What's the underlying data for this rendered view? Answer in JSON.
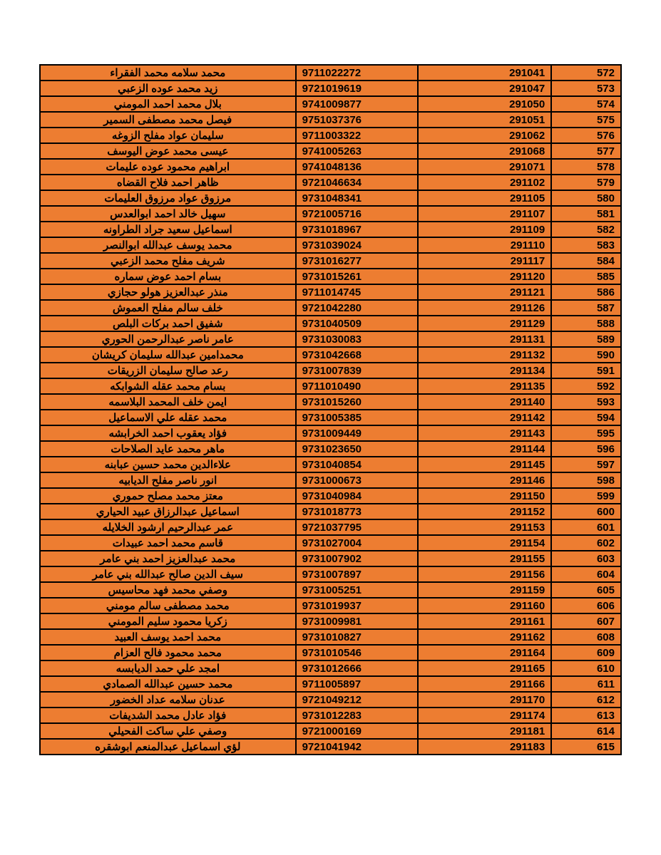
{
  "table": {
    "background_color": "#ed7d31",
    "border_color": "#000000",
    "text_color": "#000000",
    "font_weight": "bold",
    "font_size": 15,
    "columns": [
      {
        "key": "name",
        "width_pct": 44,
        "align": "center",
        "dir": "rtl"
      },
      {
        "key": "id",
        "width_pct": 21,
        "align": "left"
      },
      {
        "key": "code",
        "width_pct": 23,
        "align": "right"
      },
      {
        "key": "seq",
        "width_pct": 12,
        "align": "right"
      }
    ],
    "rows": [
      {
        "name": "محمد سلامه محمد الفقراء",
        "id": "9711022272",
        "code": "291041",
        "seq": "572"
      },
      {
        "name": "زيد محمد عوده الزعبي",
        "id": "9721019619",
        "code": "291047",
        "seq": "573"
      },
      {
        "name": "بلال محمد احمد المومني",
        "id": "9741009877",
        "code": "291050",
        "seq": "574"
      },
      {
        "name": "فيصل محمد مصطفى السمير",
        "id": "9751037376",
        "code": "291051",
        "seq": "575"
      },
      {
        "name": "سليمان عواد مفلح الزوغه",
        "id": "9711003322",
        "code": "291062",
        "seq": "576"
      },
      {
        "name": "عيسى محمد عوض اليوسف",
        "id": "9741005263",
        "code": "291068",
        "seq": "577"
      },
      {
        "name": "ابراهيم محمود عوده عليمات",
        "id": "9741048136",
        "code": "291071",
        "seq": "578"
      },
      {
        "name": "ظاهر احمد فلاح القضاه",
        "id": "9721046634",
        "code": "291102",
        "seq": "579"
      },
      {
        "name": "مرزوق عواد مرزوق العليمات",
        "id": "9731048341",
        "code": "291105",
        "seq": "580"
      },
      {
        "name": "سهيل خالد احمد ابوالعدس",
        "id": "9721005716",
        "code": "291107",
        "seq": "581"
      },
      {
        "name": "اسماعيل سعيد جراد الطراونه",
        "id": "9731018967",
        "code": "291109",
        "seq": "582"
      },
      {
        "name": "محمد يوسف عبدالله ابوالنصر",
        "id": "9731039024",
        "code": "291110",
        "seq": "583"
      },
      {
        "name": "شريف مفلح محمد الزعبي",
        "id": "9731016277",
        "code": "291117",
        "seq": "584"
      },
      {
        "name": "بسام احمد عوض سماره",
        "id": "9731015261",
        "code": "291120",
        "seq": "585"
      },
      {
        "name": "منذر عبدالعزيز هولو حجازي",
        "id": "9711014745",
        "code": "291121",
        "seq": "586"
      },
      {
        "name": "خلف سالم مفلح العموش",
        "id": "9721042280",
        "code": "291126",
        "seq": "587"
      },
      {
        "name": "شفيق احمد بركات البلص",
        "id": "9731040509",
        "code": "291129",
        "seq": "588"
      },
      {
        "name": "عامر ناصر عبدالرحمن الحوري",
        "id": "9731030083",
        "code": "291131",
        "seq": "589"
      },
      {
        "name": "محمدامين عبدالله سليمان كريشان",
        "id": "9731042668",
        "code": "291132",
        "seq": "590"
      },
      {
        "name": "رعد صالح سليمان الزريقات",
        "id": "9731007839",
        "code": "291134",
        "seq": "591"
      },
      {
        "name": "بسام محمد عقله الشوابكه",
        "id": "9711010490",
        "code": "291135",
        "seq": "592"
      },
      {
        "name": "ايمن خلف المحمد البلاسمه",
        "id": "9731015260",
        "code": "291140",
        "seq": "593"
      },
      {
        "name": "محمد عقله علي الاسماعيل",
        "id": "9731005385",
        "code": "291142",
        "seq": "594"
      },
      {
        "name": "فؤاد يعقوب احمد الخرابشه",
        "id": "9731009449",
        "code": "291143",
        "seq": "595"
      },
      {
        "name": "ماهر محمد عايد الصلاحات",
        "id": "9731023650",
        "code": "291144",
        "seq": "596"
      },
      {
        "name": "علاءالدين محمد حسين عبابنه",
        "id": "9731040854",
        "code": "291145",
        "seq": "597"
      },
      {
        "name": "انور ناصر مفلح الديابيه",
        "id": "9731000673",
        "code": "291146",
        "seq": "598"
      },
      {
        "name": "معتز محمد مصلح حموري",
        "id": "9731040984",
        "code": "291150",
        "seq": "599"
      },
      {
        "name": "اسماعيل عبدالرزاق عبيد الحياري",
        "id": "9731018773",
        "code": "291152",
        "seq": "600"
      },
      {
        "name": "عمر عبدالرحيم ارشود الخلايله",
        "id": "9721037795",
        "code": "291153",
        "seq": "601"
      },
      {
        "name": "قاسم محمد احمد عبيدات",
        "id": "9731027004",
        "code": "291154",
        "seq": "602"
      },
      {
        "name": "محمد عبدالعزيز احمد بني عامر",
        "id": "9731007902",
        "code": "291155",
        "seq": "603"
      },
      {
        "name": "سيف الدين صالح عبدالله بني عامر",
        "id": "9731007897",
        "code": "291156",
        "seq": "604"
      },
      {
        "name": "وصفي محمد فهد محاسيس",
        "id": "9731005251",
        "code": "291159",
        "seq": "605"
      },
      {
        "name": "محمد مصطفى سالم مومني",
        "id": "9731019937",
        "code": "291160",
        "seq": "606"
      },
      {
        "name": "زكريا محمود سليم المومني",
        "id": "9731009981",
        "code": "291161",
        "seq": "607"
      },
      {
        "name": "محمد احمد يوسف العبيد",
        "id": "9731010827",
        "code": "291162",
        "seq": "608"
      },
      {
        "name": "محمد محمود فالح العزام",
        "id": "9731010546",
        "code": "291164",
        "seq": "609"
      },
      {
        "name": "امجد علي حمد الديابسه",
        "id": "9731012666",
        "code": "291165",
        "seq": "610"
      },
      {
        "name": "محمد حسين عبدالله الصمادي",
        "id": "9711005897",
        "code": "291166",
        "seq": "611"
      },
      {
        "name": "عدنان سلامه عداد الخضور",
        "id": "9721049212",
        "code": "291170",
        "seq": "612"
      },
      {
        "name": "فؤاد عادل محمد الشديفات",
        "id": "9731012283",
        "code": "291174",
        "seq": "613"
      },
      {
        "name": "وصفي علي ساكت الفحيلي",
        "id": "9721000169",
        "code": "291181",
        "seq": "614"
      },
      {
        "name": "لؤي اسماعيل عبدالمنعم ابوشقره",
        "id": "9721041942",
        "code": "291183",
        "seq": "615"
      }
    ]
  }
}
